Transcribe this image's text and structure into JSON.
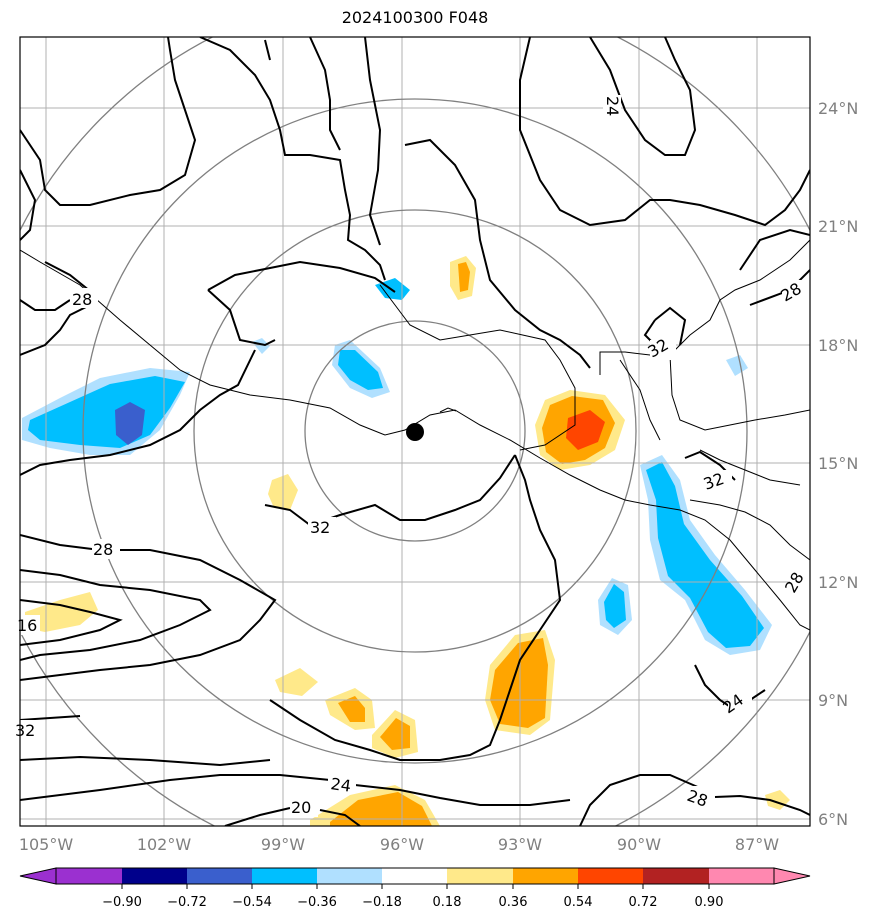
{
  "title": "2024100300 F048",
  "longitude_labels": [
    "105°W",
    "102°W",
    "99°W",
    "96°W",
    "93°W",
    "90°W",
    "87°W"
  ],
  "latitude_labels": [
    "24°N",
    "21°N",
    "18°N",
    "15°N",
    "12°N",
    "9°N",
    "6°N"
  ],
  "colorbar": {
    "tick_labels": [
      "−0.90",
      "−0.72",
      "−0.54",
      "−0.36",
      "−0.18",
      "0.18",
      "0.36",
      "0.54",
      "0.72",
      "0.90"
    ],
    "colors": [
      "#9b30d0",
      "#00008b",
      "#3a5fcd",
      "#00bfff",
      "#b0e0ff",
      "#ffffff",
      "#ffe98a",
      "#ffa500",
      "#ff4500",
      "#b22222",
      "#ff88b0"
    ]
  },
  "contour_labels": [
    "24",
    "28",
    "28",
    "32",
    "32",
    "32",
    "28",
    "16",
    "32",
    "24",
    "20",
    "28",
    "24",
    "28"
  ],
  "colors": {
    "grid": "#b0b0b0",
    "range_ring": "#808080",
    "contour": "#000000",
    "center_marker": "#000000"
  }
}
